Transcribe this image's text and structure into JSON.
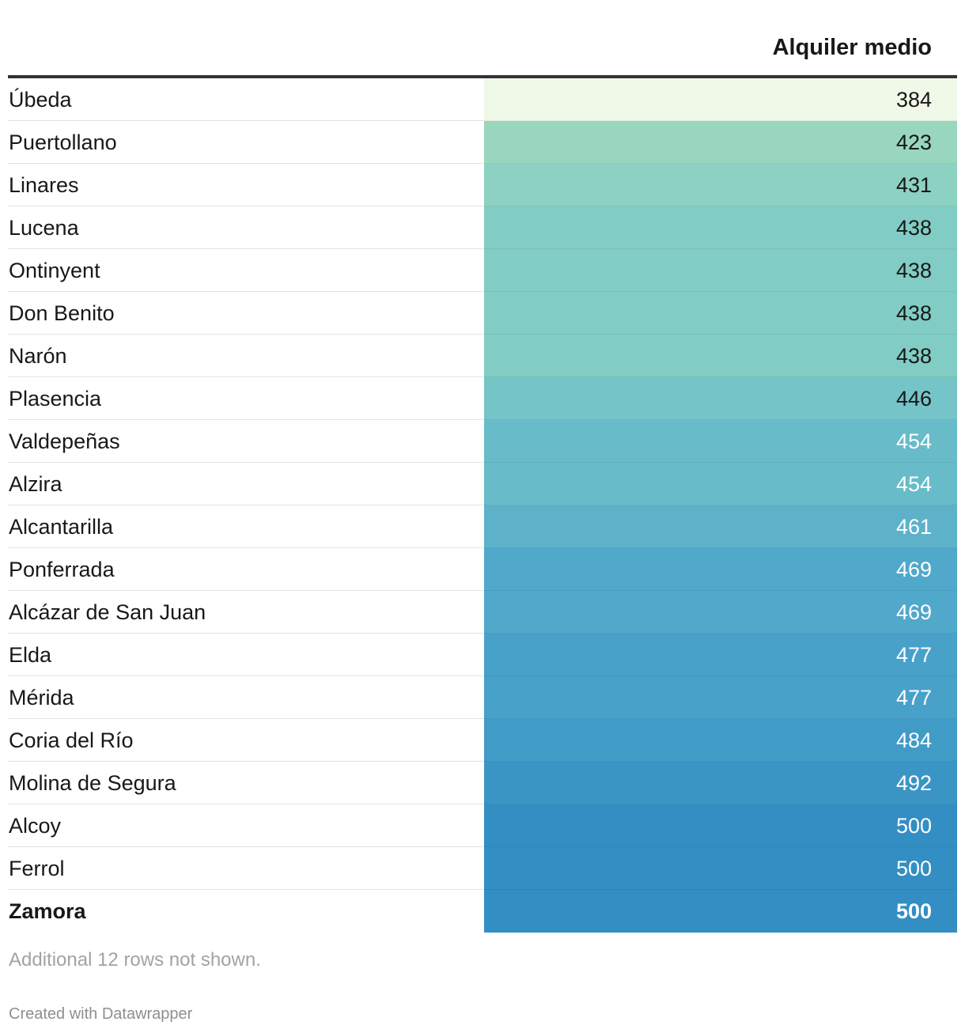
{
  "header": {
    "value_column": "Alquiler medio"
  },
  "chart_data": {
    "type": "table",
    "columns": [
      "",
      "Alquiler medio"
    ],
    "color_scale": {
      "min": 384,
      "max": 500,
      "colors": [
        "#f0f9e8",
        "#a8deba",
        "#7bc9c6",
        "#4da6cb",
        "#338ec3"
      ]
    },
    "rows": [
      {
        "name": "Úbeda",
        "value": 384,
        "bold": false
      },
      {
        "name": "Puertollano",
        "value": 423,
        "bold": false
      },
      {
        "name": "Linares",
        "value": 431,
        "bold": false
      },
      {
        "name": "Lucena",
        "value": 438,
        "bold": false
      },
      {
        "name": "Ontinyent",
        "value": 438,
        "bold": false
      },
      {
        "name": "Don Benito",
        "value": 438,
        "bold": false
      },
      {
        "name": "Narón",
        "value": 438,
        "bold": false
      },
      {
        "name": "Plasencia",
        "value": 446,
        "bold": false
      },
      {
        "name": "Valdepeñas",
        "value": 454,
        "bold": false
      },
      {
        "name": "Alzira",
        "value": 454,
        "bold": false
      },
      {
        "name": "Alcantarilla",
        "value": 461,
        "bold": false
      },
      {
        "name": "Ponferrada",
        "value": 469,
        "bold": false
      },
      {
        "name": "Alcázar de San Juan",
        "value": 469,
        "bold": false
      },
      {
        "name": "Elda",
        "value": 477,
        "bold": false
      },
      {
        "name": "Mérida",
        "value": 477,
        "bold": false
      },
      {
        "name": "Coria del Río",
        "value": 484,
        "bold": false
      },
      {
        "name": "Molina de Segura",
        "value": 492,
        "bold": false
      },
      {
        "name": "Alcoy",
        "value": 500,
        "bold": false
      },
      {
        "name": "Ferrol",
        "value": 500,
        "bold": false
      },
      {
        "name": "Zamora",
        "value": 500,
        "bold": true
      }
    ]
  },
  "footer": {
    "note": "Additional 12 rows not shown.",
    "credit": "Created with Datawrapper"
  }
}
